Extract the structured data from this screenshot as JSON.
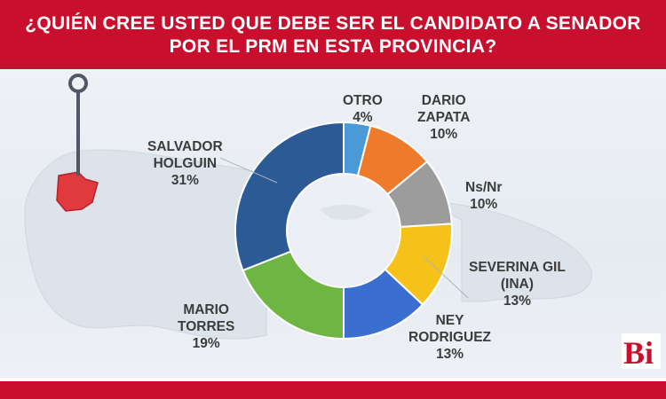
{
  "header": {
    "title": "¿QUIÉN CREE USTED QUE DEBE SER EL CANDIDATO A SENADOR POR EL PRM EN ESTA PROVINCIA?"
  },
  "logo": {
    "text": "Bi"
  },
  "colors": {
    "brand_red": "#c8102e",
    "otro": "#4a9ad8",
    "dario_zapata": "#ee7a2c",
    "ns_nr": "#9c9c9c",
    "severina_gil": "#f6c21a",
    "ney_rodriguez": "#3a6fd0",
    "mario_torres": "#6fb543",
    "salvador_holguin": "#2b5a94"
  },
  "chart_data": {
    "type": "pie",
    "variant": "donut",
    "title": "¿QUIÉN CREE USTED QUE DEBE SER EL CANDIDATO A SENADOR POR EL PRM EN ESTA PROVINCIA?",
    "slices": [
      {
        "name": "OTRO",
        "value": 4,
        "label": "4%",
        "color": "#4a9ad8"
      },
      {
        "name": "DARIO ZAPATA",
        "value": 10,
        "label": "10%",
        "color": "#ee7a2c"
      },
      {
        "name": "Ns/Nr",
        "value": 10,
        "label": "10%",
        "color": "#9c9c9c"
      },
      {
        "name": "SEVERINA GIL (INA)",
        "value": 13,
        "label": "13%",
        "color": "#f6c21a"
      },
      {
        "name": "NEY RODRIGUEZ",
        "value": 13,
        "label": "13%",
        "color": "#3a6fd0"
      },
      {
        "name": "MARIO TORRES",
        "value": 19,
        "label": "19%",
        "color": "#6fb543"
      },
      {
        "name": "SALVADOR HOLGUIN",
        "value": 31,
        "label": "31%",
        "color": "#2b5a94"
      }
    ],
    "labels": {
      "otro": "OTRO\n4%",
      "dario_zapata": "DARIO\nZAPATA\n10%",
      "ns_nr": "Ns/Nr\n10%",
      "severina_gil": "SEVERINA GIL\n(INA)\n13%",
      "ney_rodriguez": "NEY\nRODRIGUEZ\n13%",
      "mario_torres": "MARIO\nTORRES\n19%",
      "salvador_holguin": "SALVADOR\nHOLGUIN\n31%"
    }
  }
}
